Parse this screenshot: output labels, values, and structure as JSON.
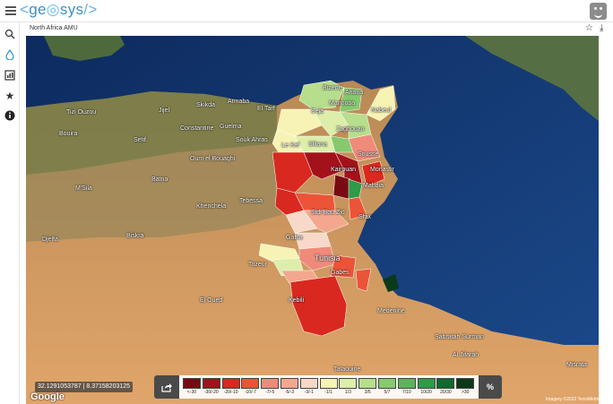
{
  "header": {
    "logo_text": "geosys",
    "menu_icon": "menu-icon",
    "avatar_icon": "avatar-icon"
  },
  "sidebar": {
    "items": [
      {
        "name": "layers",
        "icon": "layers-icon"
      },
      {
        "name": "location",
        "icon": "drop-icon",
        "active": true
      },
      {
        "name": "reports",
        "icon": "report-icon"
      },
      {
        "name": "favorites",
        "icon": "star-icon"
      },
      {
        "name": "info",
        "icon": "info-icon"
      }
    ]
  },
  "panel": {
    "title": "North Africa AMU"
  },
  "map": {
    "coordinates": "32.1291053787 | 8.37158203125",
    "attribution": "Imagery ©2022 TerraMetrics",
    "provider": "Google",
    "places": [
      {
        "name": "Tizi Ouzou"
      },
      {
        "name": "Bouira"
      },
      {
        "name": "Jijel"
      },
      {
        "name": "Skikda"
      },
      {
        "name": "Annaba"
      },
      {
        "name": "El Tarf"
      },
      {
        "name": "Setif"
      },
      {
        "name": "Constantine"
      },
      {
        "name": "Guelma"
      },
      {
        "name": "Souk Ahras"
      },
      {
        "name": "Oum el Bouaghi"
      },
      {
        "name": "Batna"
      },
      {
        "name": "Khenchela"
      },
      {
        "name": "Tebessa"
      },
      {
        "name": "M'Sila"
      },
      {
        "name": "Biskra"
      },
      {
        "name": "Djelfa"
      },
      {
        "name": "El Oued"
      },
      {
        "name": "Bizerte"
      },
      {
        "name": "Ariana"
      },
      {
        "name": "Manouba"
      },
      {
        "name": "Nabeul"
      },
      {
        "name": "Beja"
      },
      {
        "name": "Zaghouan"
      },
      {
        "name": "Le Kef"
      },
      {
        "name": "Siliana"
      },
      {
        "name": "Sousse"
      },
      {
        "name": "Kairouan"
      },
      {
        "name": "Monastir"
      },
      {
        "name": "Mahdia"
      },
      {
        "name": "Sidi Bou Zid"
      },
      {
        "name": "Sfax"
      },
      {
        "name": "Gafsa"
      },
      {
        "name": "Tunisia"
      },
      {
        "name": "Tozeur"
      },
      {
        "name": "Gabes"
      },
      {
        "name": "Kebili"
      },
      {
        "name": "Medenine"
      },
      {
        "name": "Sabratah Surman"
      },
      {
        "name": "Al Jifarah"
      },
      {
        "name": "Tataouine"
      },
      {
        "name": "Misrata"
      }
    ]
  },
  "legend": {
    "share_icon": "share-icon",
    "percent_label": "%",
    "items": [
      {
        "label": "<-30",
        "color": "#7a0a12"
      },
      {
        "label": "-30/-20",
        "color": "#a3121b"
      },
      {
        "label": "-20/-10",
        "color": "#d9281f"
      },
      {
        "label": "-10/-7",
        "color": "#ec5438"
      },
      {
        "label": "-7/-5",
        "color": "#f08a7a"
      },
      {
        "label": "-5/-3",
        "color": "#f3a78e"
      },
      {
        "label": "-3/-1",
        "color": "#f8d8c8"
      },
      {
        "label": "-1/1",
        "color": "#f7f3b4"
      },
      {
        "label": "1/3",
        "color": "#ddeeaa"
      },
      {
        "label": "3/5",
        "color": "#b7de8c"
      },
      {
        "label": "5/7",
        "color": "#86c96f"
      },
      {
        "label": "7/10",
        "color": "#5db35a"
      },
      {
        "label": "10/20",
        "color": "#2f9a48"
      },
      {
        "label": "20/30",
        "color": "#0e6a2d"
      },
      {
        "label": ">30",
        "color": "#0a3a1a"
      }
    ]
  }
}
